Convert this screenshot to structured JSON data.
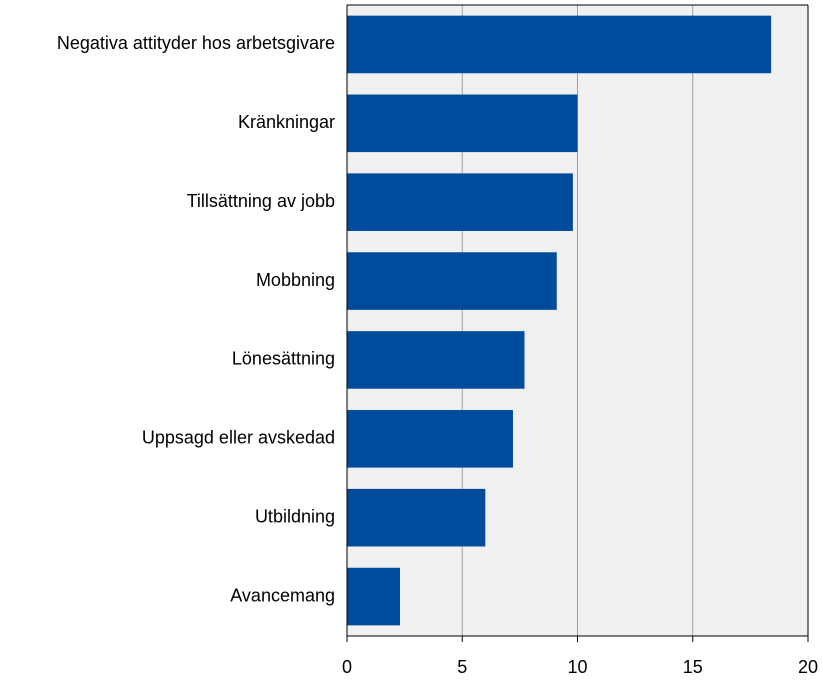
{
  "chart_data": {
    "type": "bar",
    "orientation": "horizontal",
    "categories": [
      "Negativa attityder hos arbetsgivare",
      "Kränkningar",
      "Tillsättning av jobb",
      "Mobbning",
      "Lönesättning",
      "Uppsagd eller avskedad",
      "Utbildning",
      "Avancemang"
    ],
    "values": [
      18.4,
      10.0,
      9.8,
      9.1,
      7.7,
      7.2,
      6.0,
      2.3
    ],
    "color": "#004b9b",
    "xlim": [
      0,
      20
    ],
    "xticks": [
      0,
      5,
      10,
      15,
      20
    ],
    "grid": true
  }
}
